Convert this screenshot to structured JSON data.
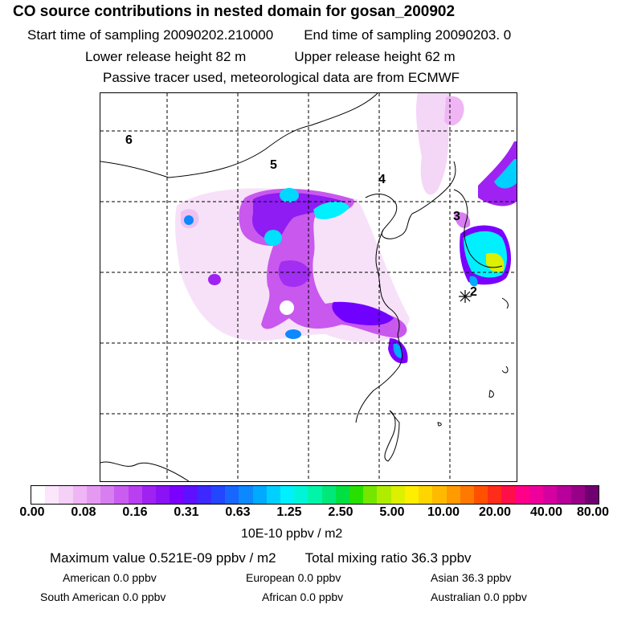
{
  "header": {
    "title": "CO  source contributions in nested domain for gosan_200902",
    "start_label": "Start time of sampling 20090202.210000",
    "end_label": "End time of sampling 20090203.     0",
    "lower_label": "Lower release height   82 m",
    "upper_label": "Upper release height   62 m",
    "tracer_label": "Passive tracer used, meteorological data are from ECMWF"
  },
  "map": {
    "region_labels": [
      "6",
      "5",
      "4",
      "3",
      "2"
    ],
    "receptor_icon": "asterisk-marker"
  },
  "colorbar": {
    "colors": [
      "#ffffff",
      "#fbe6fb",
      "#f5d0f7",
      "#efb5f4",
      "#e59af2",
      "#d77ef0",
      "#c95df0",
      "#b93ff0",
      "#9f22f2",
      "#8b12f4",
      "#7a00ff",
      "#5d11ff",
      "#3d29ff",
      "#2346ff",
      "#1767ff",
      "#0d88ff",
      "#00aaff",
      "#00d0ff",
      "#00f0ff",
      "#00f5d8",
      "#00f5a8",
      "#00e87a",
      "#00e040",
      "#28e000",
      "#74e600",
      "#b0ec00",
      "#dcf000",
      "#ffee00",
      "#ffd500",
      "#ffba00",
      "#ff9a00",
      "#ff7800",
      "#ff5000",
      "#ff2c1a",
      "#ff0f4a",
      "#ff0088",
      "#ef009c",
      "#d500a0",
      "#b8009a",
      "#980088",
      "#700070"
    ],
    "tick_labels": [
      "0.00",
      "0.08",
      "0.16",
      "0.31",
      "0.63",
      "1.25",
      "2.50",
      "5.00",
      "10.00",
      "20.00",
      "40.00",
      "80.00"
    ],
    "unit": "10E-10 ppbv / m2"
  },
  "summary": {
    "max_value": "Maximum value  0.521E-09 ppbv / m2",
    "total_mixing": "Total mixing ratio       36.3 ppbv",
    "american": "American        0.0 ppbv",
    "european": "European       0.0 ppbv",
    "asian": "Asian      36.3 ppbv",
    "south_american": "South American        0.0 ppbv",
    "african": "African        0.0 ppbv",
    "australian": "Australian        0.0 ppbv"
  }
}
